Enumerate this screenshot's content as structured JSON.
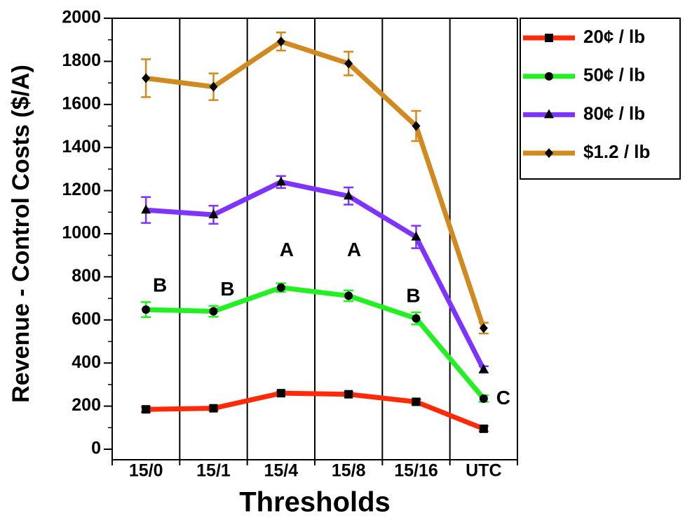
{
  "chart_data": {
    "type": "line",
    "x_label": "Thresholds",
    "y_label": "Revenue - Control Costs ($/A)",
    "categories": [
      "15/0",
      "15/1",
      "15/4",
      "15/8",
      "15/16",
      "UTC"
    ],
    "ylim": [
      0,
      2000
    ],
    "yticks": [
      0,
      200,
      400,
      600,
      800,
      1000,
      1200,
      1400,
      1600,
      1800,
      2000
    ],
    "grid": true,
    "legend": "right",
    "series": [
      {
        "name": "20¢ / lb",
        "color": "#ff2a0a",
        "marker": "square",
        "values": [
          185,
          190,
          260,
          255,
          220,
          95
        ],
        "errors": [
          12,
          10,
          8,
          10,
          12,
          12
        ]
      },
      {
        "name": "50¢ / lb",
        "color": "#22f022",
        "marker": "circle",
        "values": [
          648,
          640,
          750,
          712,
          607,
          235
        ],
        "errors": [
          35,
          25,
          20,
          25,
          28,
          15
        ]
      },
      {
        "name": "80¢ / lb",
        "color": "#7f33ff",
        "marker": "triangle",
        "values": [
          1110,
          1088,
          1240,
          1175,
          985,
          370
        ],
        "errors": [
          60,
          42,
          28,
          40,
          52,
          15
        ]
      },
      {
        "name": "$1.2 / lb",
        "color": "#d08a1f",
        "marker": "diamond",
        "values": [
          1722,
          1682,
          1892,
          1790,
          1500,
          562
        ],
        "errors": [
          88,
          62,
          42,
          55,
          70,
          25
        ]
      }
    ],
    "annotations": [
      {
        "text": "B",
        "category": "15/0"
      },
      {
        "text": "B",
        "category": "15/1"
      },
      {
        "text": "A",
        "category": "15/4"
      },
      {
        "text": "A",
        "category": "15/8"
      },
      {
        "text": "B",
        "category": "15/16"
      },
      {
        "text": "C",
        "category": "UTC"
      }
    ]
  }
}
